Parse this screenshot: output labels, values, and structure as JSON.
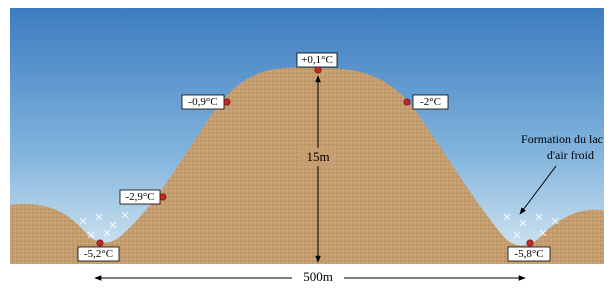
{
  "labels": [
    "+0,1°C",
    "-0,9°C",
    "-2°C",
    "-2,9°C",
    "-5,2°C",
    "-5,8°C"
  ],
  "height_label": "15m",
  "width_label": "500m",
  "annotation": [
    "Formation du lac",
    "d'air froid"
  ]
}
